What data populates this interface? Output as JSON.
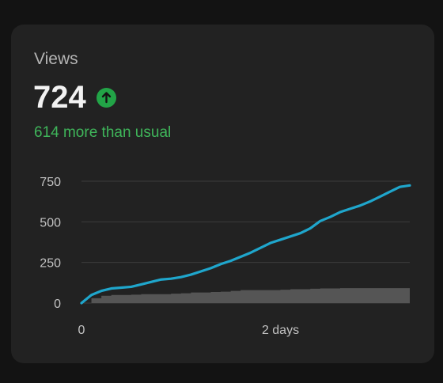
{
  "card": {
    "title": "Views",
    "value": "724",
    "comparison": "614 more than usual",
    "trend_icon": "arrow-up-icon",
    "colors": {
      "accent_line": "#1fa6cc",
      "baseline_band": "#555555",
      "positive": "#3fb55a"
    }
  },
  "chart_data": {
    "type": "line",
    "xlabel": "",
    "ylabel": "",
    "x_ticks": [
      "0",
      "2 days"
    ],
    "y_ticks": [
      "0",
      "250",
      "500",
      "750"
    ],
    "ylim": [
      0,
      750
    ],
    "x": [
      0,
      0.1,
      0.2,
      0.3,
      0.4,
      0.5,
      0.6,
      0.7,
      0.8,
      0.9,
      1.0,
      1.1,
      1.2,
      1.3,
      1.4,
      1.5,
      1.6,
      1.7,
      1.8,
      1.9,
      2.0,
      2.1,
      2.2,
      2.3,
      2.4,
      2.5,
      2.6,
      2.7,
      2.8,
      2.9,
      3.0,
      3.1,
      3.2,
      3.3
    ],
    "series": [
      {
        "values": [
          0,
          50,
          75,
          90,
          95,
          100,
          115,
          130,
          145,
          150,
          160,
          175,
          195,
          215,
          240,
          260,
          285,
          310,
          340,
          370,
          390,
          410,
          430,
          460,
          505,
          530,
          560,
          580,
          600,
          625,
          655,
          685,
          715,
          724
        ]
      },
      {
        "type": "area",
        "lower": [
          0,
          0,
          0,
          0,
          0,
          0,
          0,
          0,
          0,
          0,
          0,
          0,
          0,
          0,
          0,
          0,
          0,
          0,
          0,
          0,
          0,
          0,
          0,
          0,
          0,
          0,
          0,
          0,
          0,
          0,
          0,
          0,
          0,
          0
        ],
        "upper": [
          0,
          30,
          45,
          50,
          50,
          52,
          55,
          55,
          55,
          58,
          60,
          65,
          65,
          68,
          70,
          75,
          80,
          80,
          80,
          80,
          82,
          85,
          85,
          88,
          90,
          90,
          92,
          92,
          92,
          92,
          92,
          92,
          92,
          92
        ]
      }
    ]
  }
}
